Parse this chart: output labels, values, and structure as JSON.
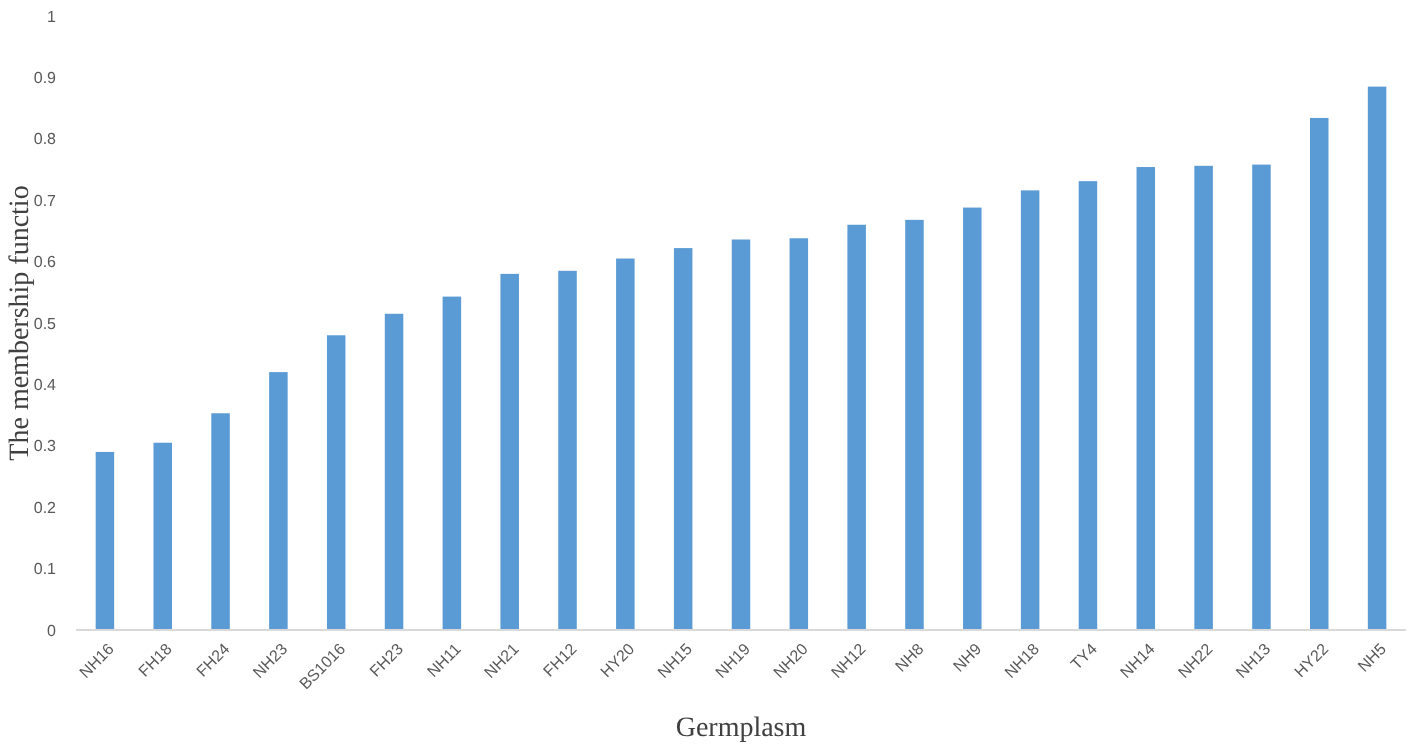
{
  "chart_data": {
    "type": "bar",
    "xlabel": "Germplasm",
    "ylabel": "The membership functio",
    "categories": [
      "NH16",
      "FH18",
      "FH24",
      "NH23",
      "BS1016",
      "FH23",
      "NH11",
      "NH21",
      "FH12",
      "HY20",
      "NH15",
      "NH19",
      "NH20",
      "NH12",
      "NH8",
      "NH9",
      "NH18",
      "TY4",
      "NH14",
      "NH22",
      "NH13",
      "HY22",
      "NH5"
    ],
    "values": [
      0.29,
      0.305,
      0.353,
      0.42,
      0.48,
      0.515,
      0.543,
      0.58,
      0.585,
      0.605,
      0.622,
      0.636,
      0.638,
      0.66,
      0.668,
      0.688,
      0.716,
      0.731,
      0.754,
      0.756,
      0.758,
      0.834,
      0.885
    ],
    "color": "#5b9bd5",
    "ylim": [
      0,
      1
    ],
    "yticks": [
      0,
      0.1,
      0.2,
      0.3,
      0.4,
      0.5,
      0.6,
      0.7,
      0.8,
      0.9,
      1
    ],
    "grid": false
  }
}
